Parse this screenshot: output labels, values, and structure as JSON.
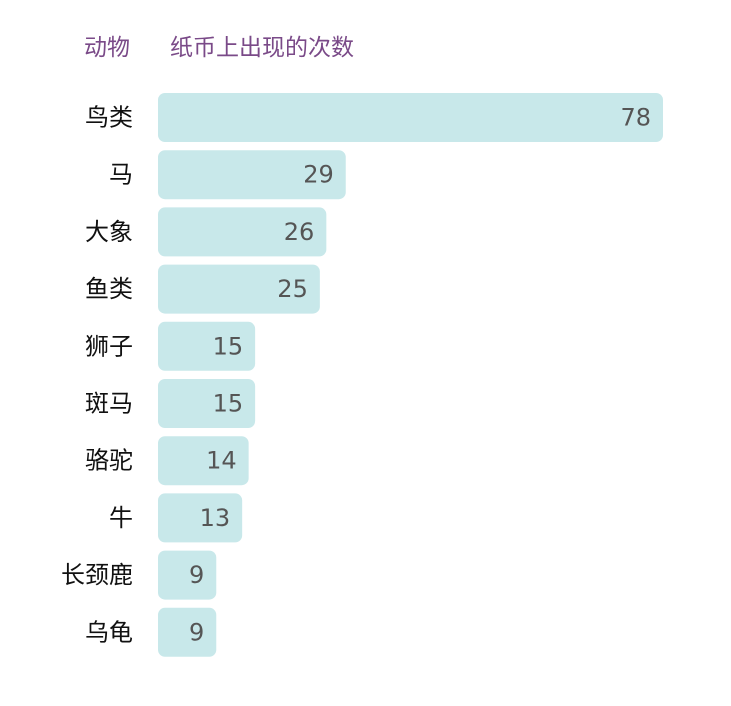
{
  "header": {
    "category_label": "动物",
    "value_label": "纸币上出现的次数"
  },
  "colors": {
    "bar": "#c8e8ea",
    "header_text": "#7a4a88",
    "category_text": "#111111",
    "value_text": "#555555"
  },
  "chart_data": {
    "type": "bar",
    "orientation": "horizontal",
    "categories": [
      "鸟类",
      "马",
      "大象",
      "鱼类",
      "狮子",
      "斑马",
      "骆驼",
      "牛",
      "长颈鹿",
      "乌龟"
    ],
    "values": [
      78,
      29,
      26,
      25,
      15,
      15,
      14,
      13,
      9,
      9
    ],
    "xlim": [
      0,
      78
    ],
    "grid": false,
    "legend": "none"
  }
}
